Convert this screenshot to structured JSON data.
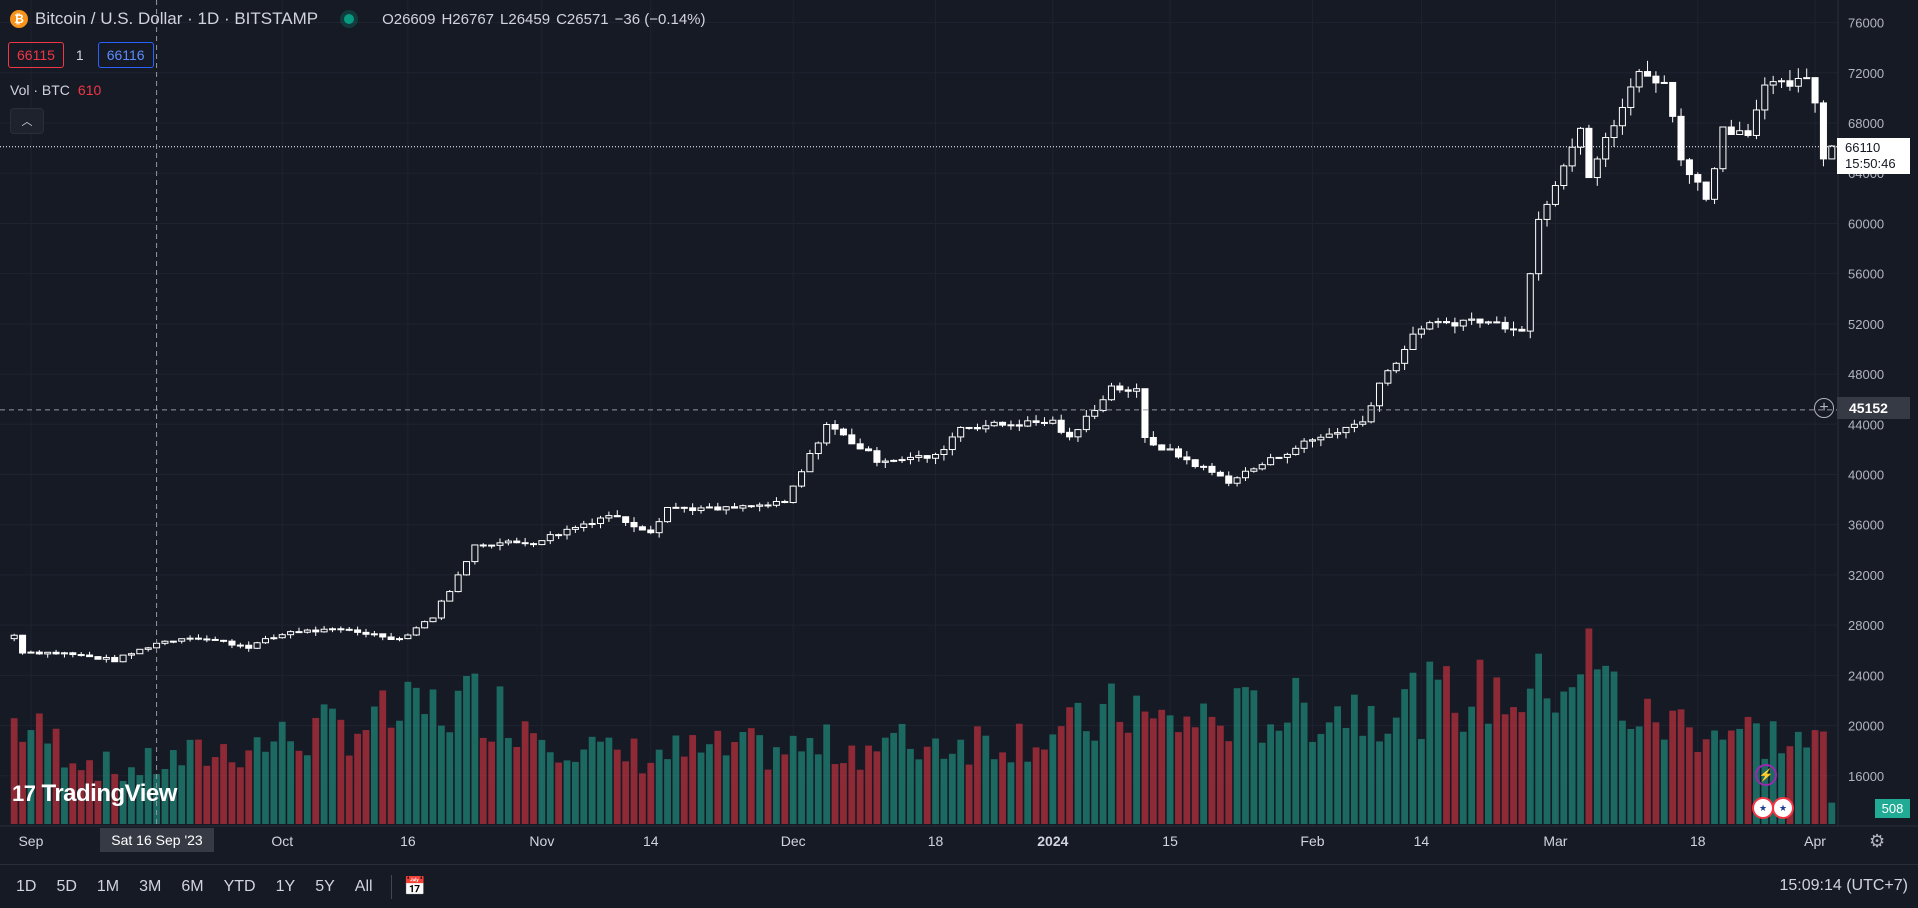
{
  "header": {
    "symbol_title": "Bitcoin / U.S. Dollar · 1D · BITSTAMP",
    "coin_glyph": "₿",
    "ohlc": {
      "open": "O26609",
      "high": "H26767",
      "low": "L26459",
      "close": "C26571",
      "change": "−36 (−0.14%)"
    }
  },
  "quote": {
    "bid": "66115",
    "spread": "1",
    "ask": "66116"
  },
  "volume_legend": {
    "label": "Vol · BTC",
    "value": "610"
  },
  "logo": {
    "text": "TradingView",
    "icon": "tradingview-logo"
  },
  "badges": {
    "last_price": "66110",
    "countdown": "15:50:46",
    "crosshair_price": "45152",
    "volume_last": "508",
    "crosshair_date": "Sat 16 Sep '23"
  },
  "bottom_bar": {
    "ranges": [
      "1D",
      "5D",
      "1M",
      "3M",
      "6M",
      "YTD",
      "1Y",
      "5Y",
      "All"
    ],
    "clock": "15:09:14 (UTC+7)"
  },
  "icons": {
    "collapse": "chevron-up-icon",
    "add": "plus-circle-icon",
    "events": "lightning-icon",
    "economic": "us-flag-icon",
    "settings": "gear-icon",
    "date_range": "calendar-icon"
  },
  "colors": {
    "background": "#161a25",
    "up_volume": "#22ab94",
    "down_volume": "#f23645",
    "candle": "#ffffff",
    "grid": "#1f2330"
  },
  "chart_data": {
    "type": "candlestick",
    "title": "Bitcoin / U.S. Dollar · 1D · BITSTAMP",
    "y_ticks": [
      16000,
      20000,
      24000,
      28000,
      32000,
      36000,
      40000,
      44000,
      48000,
      52000,
      56000,
      60000,
      64000,
      68000,
      72000,
      76000
    ],
    "ylim": [
      12000,
      77800
    ],
    "x_start": "2023-08-30",
    "x_end": "2024-04-03",
    "x_ticks": [
      {
        "label": "Sep",
        "date": "2023-09-01"
      },
      {
        "label": "Oct",
        "date": "2023-10-01"
      },
      {
        "label": "16",
        "date": "2023-10-16"
      },
      {
        "label": "Nov",
        "date": "2023-11-01"
      },
      {
        "label": "14",
        "date": "2023-11-14"
      },
      {
        "label": "Dec",
        "date": "2023-12-01"
      },
      {
        "label": "18",
        "date": "2023-12-18"
      },
      {
        "label": "2024",
        "date": "2024-01-01"
      },
      {
        "label": "15",
        "date": "2024-01-15"
      },
      {
        "label": "Feb",
        "date": "2024-02-01"
      },
      {
        "label": "14",
        "date": "2024-02-14"
      },
      {
        "label": "Mar",
        "date": "2024-03-01"
      },
      {
        "label": "18",
        "date": "2024-03-18"
      },
      {
        "label": "Apr",
        "date": "2024-04-01"
      }
    ],
    "close_anchors": [
      [
        "2023-08-30",
        27200
      ],
      [
        "2023-08-31",
        25900
      ],
      [
        "2023-09-05",
        25750
      ],
      [
        "2023-09-11",
        25200
      ],
      [
        "2023-09-16",
        26570
      ],
      [
        "2023-09-20",
        27100
      ],
      [
        "2023-09-27",
        26300
      ],
      [
        "2023-10-02",
        27500
      ],
      [
        "2023-10-09",
        27600
      ],
      [
        "2023-10-15",
        26900
      ],
      [
        "2023-10-19",
        28700
      ],
      [
        "2023-10-23",
        33000
      ],
      [
        "2023-10-24",
        34500
      ],
      [
        "2023-10-31",
        34600
      ],
      [
        "2023-11-09",
        36800
      ],
      [
        "2023-11-14",
        35500
      ],
      [
        "2023-11-16",
        37400
      ],
      [
        "2023-11-22",
        37200
      ],
      [
        "2023-11-30",
        37700
      ],
      [
        "2023-12-05",
        44000
      ],
      [
        "2023-12-11",
        41200
      ],
      [
        "2023-12-18",
        41400
      ],
      [
        "2023-12-21",
        43800
      ],
      [
        "2024-01-01",
        44200
      ],
      [
        "2024-01-03",
        42800
      ],
      [
        "2024-01-08",
        47000
      ],
      [
        "2024-01-11",
        46600
      ],
      [
        "2024-01-12",
        42800
      ],
      [
        "2024-01-22",
        39500
      ],
      [
        "2024-01-23",
        39800
      ],
      [
        "2024-01-31",
        42500
      ],
      [
        "2024-02-07",
        44200
      ],
      [
        "2024-02-09",
        47300
      ],
      [
        "2024-02-14",
        51800
      ],
      [
        "2024-02-20",
        52300
      ],
      [
        "2024-02-26",
        51700
      ],
      [
        "2024-02-28",
        60300
      ],
      [
        "2024-03-04",
        67900
      ],
      [
        "2024-03-05",
        63800
      ],
      [
        "2024-03-11",
        72000
      ],
      [
        "2024-03-14",
        71300
      ],
      [
        "2024-03-16",
        65300
      ],
      [
        "2024-03-19",
        62000
      ],
      [
        "2024-03-21",
        67500
      ],
      [
        "2024-03-24",
        67400
      ],
      [
        "2024-03-26",
        70800
      ],
      [
        "2024-03-31",
        71300
      ],
      [
        "2024-04-01",
        69700
      ],
      [
        "2024-04-02",
        65400
      ],
      [
        "2024-04-03",
        66110
      ]
    ],
    "volume_unit": "BTC",
    "volume_ylim": [
      0,
      4300
    ],
    "volume_peaks": [
      [
        "2023-08-30",
        2560
      ],
      [
        "2023-09-11",
        1300
      ],
      [
        "2023-10-23",
        3020
      ],
      [
        "2023-10-24",
        3130
      ],
      [
        "2023-11-09",
        1710
      ],
      [
        "2023-12-11",
        1960
      ],
      [
        "2024-01-03",
        2290
      ],
      [
        "2024-01-11",
        3000
      ],
      [
        "2024-01-12",
        2500
      ],
      [
        "2024-02-28",
        3350
      ],
      [
        "2024-03-05",
        4100
      ],
      [
        "2024-03-11",
        2560
      ],
      [
        "2024-03-14",
        2560
      ],
      [
        "2024-03-19",
        2460
      ],
      [
        "2024-04-02",
        1960
      ],
      [
        "2024-04-03",
        508
      ]
    ],
    "crosshair": {
      "date": "Sat 16 Sep '23",
      "price": 45152
    },
    "last_price_line": 66110
  }
}
